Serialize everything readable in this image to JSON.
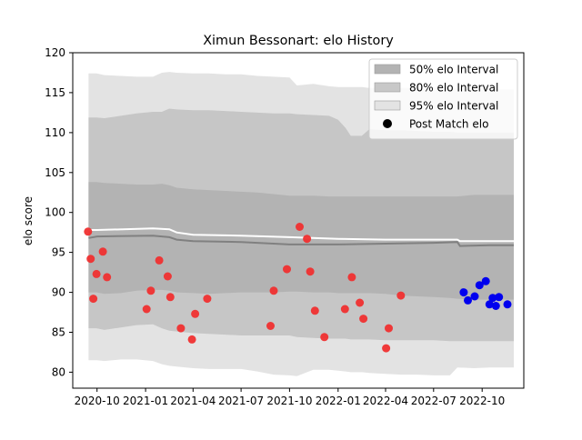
{
  "chart_data": {
    "type": "scatter",
    "title": "Ximun Bessonart: elo History",
    "xlabel": "",
    "ylabel": "elo score",
    "ylim": [
      78,
      120
    ],
    "xlim": [
      "2020-08-16",
      "2022-12-19"
    ],
    "yticks": [
      80,
      85,
      90,
      95,
      100,
      105,
      110,
      115,
      120
    ],
    "xticks": [
      {
        "date": "2020-10-01",
        "label": "2020-10"
      },
      {
        "date": "2021-01-01",
        "label": "2021-01"
      },
      {
        "date": "2021-04-01",
        "label": "2021-04"
      },
      {
        "date": "2021-07-01",
        "label": "2021-07"
      },
      {
        "date": "2021-10-01",
        "label": "2021-10"
      },
      {
        "date": "2022-01-01",
        "label": "2022-01"
      },
      {
        "date": "2022-04-01",
        "label": "2022-04"
      },
      {
        "date": "2022-07-01",
        "label": "2022-07"
      },
      {
        "date": "2022-10-01",
        "label": "2022-10"
      }
    ],
    "grid": false,
    "legend_position": "top-right",
    "legend": [
      {
        "label": "50% elo Interval",
        "kind": "patch",
        "color": "#b3b3b3"
      },
      {
        "label": "80% elo Interval",
        "kind": "patch",
        "color": "#c8c8c8"
      },
      {
        "label": "95% elo Interval",
        "kind": "patch",
        "color": "#e3e3e3"
      },
      {
        "label": "Post Match elo",
        "kind": "marker",
        "color": "#000000"
      }
    ],
    "colors": {
      "band_50": "#b3b3b3",
      "band_80": "#c6c6c6",
      "band_95": "#e3e3e3",
      "mean_line": "#808080",
      "median_line": "#ffffff",
      "past_points": "#f03030",
      "future_points": "#0000ee"
    },
    "bands": {
      "x": [
        "2020-09-15",
        "2020-09-30",
        "2020-10-15",
        "2020-11-15",
        "2020-12-15",
        "2021-01-15",
        "2021-02-01",
        "2021-02-15",
        "2021-03-01",
        "2021-04-01",
        "2021-05-01",
        "2021-06-01",
        "2021-07-01",
        "2021-08-01",
        "2021-09-01",
        "2021-10-01",
        "2021-10-15",
        "2021-11-15",
        "2021-12-15",
        "2022-01-01",
        "2022-01-15",
        "2022-01-25",
        "2022-02-15",
        "2022-03-01",
        "2022-04-01",
        "2022-05-01",
        "2022-06-01",
        "2022-07-01",
        "2022-08-01",
        "2022-08-15",
        "2022-09-15",
        "2022-10-15",
        "2022-11-30"
      ],
      "p95_upper": [
        117.4,
        117.4,
        117.2,
        117.1,
        117.0,
        117.0,
        117.5,
        117.6,
        117.5,
        117.4,
        117.4,
        117.3,
        117.3,
        117.1,
        117.0,
        116.9,
        115.9,
        116.1,
        115.8,
        115.7,
        115.7,
        115.7,
        115.7,
        115.6,
        115.6,
        115.6,
        115.6,
        115.5,
        115.5,
        115.5,
        115.4,
        115.4,
        115.4
      ],
      "p80_upper": [
        111.9,
        111.9,
        111.8,
        112.1,
        112.4,
        112.6,
        112.6,
        113.0,
        112.9,
        112.8,
        112.8,
        112.7,
        112.6,
        112.5,
        112.4,
        112.4,
        112.3,
        112.2,
        112.1,
        111.6,
        110.6,
        109.6,
        109.6,
        110.4,
        110.3,
        110.3,
        110.2,
        110.1,
        110.1,
        110.0,
        110.0,
        110.0,
        110.0
      ],
      "p50_upper": [
        103.8,
        103.8,
        103.7,
        103.6,
        103.5,
        103.5,
        103.6,
        103.4,
        103.1,
        102.9,
        102.8,
        102.7,
        102.6,
        102.5,
        102.3,
        102.1,
        102.1,
        102.1,
        102.0,
        102.0,
        102.0,
        102.0,
        102.0,
        102.0,
        102.0,
        102.0,
        102.0,
        102.0,
        102.0,
        102.0,
        102.2,
        102.2,
        102.2
      ],
      "p50_lower": [
        90.0,
        90.0,
        89.8,
        89.9,
        90.2,
        90.3,
        90.3,
        90.2,
        90.0,
        89.9,
        89.8,
        89.9,
        90.0,
        90.0,
        90.0,
        90.1,
        90.1,
        90.0,
        90.0,
        89.9,
        89.9,
        89.9,
        89.9,
        89.9,
        89.8,
        89.6,
        89.5,
        89.4,
        89.3,
        89.2,
        89.1,
        89.1,
        89.1
      ],
      "p80_lower": [
        85.5,
        85.5,
        85.3,
        85.6,
        85.9,
        86.0,
        85.5,
        85.2,
        85.1,
        84.9,
        84.8,
        84.7,
        84.6,
        84.6,
        84.6,
        84.6,
        84.4,
        84.3,
        84.2,
        84.2,
        84.2,
        84.1,
        84.1,
        84.1,
        84.0,
        84.0,
        84.0,
        84.0,
        83.9,
        83.9,
        83.9,
        83.9,
        83.9
      ],
      "p95_lower": [
        81.5,
        81.5,
        81.4,
        81.6,
        81.6,
        81.4,
        81.0,
        80.8,
        80.7,
        80.5,
        80.4,
        80.4,
        80.4,
        80.1,
        79.7,
        79.6,
        79.5,
        80.3,
        80.3,
        80.2,
        80.1,
        80.0,
        80.0,
        79.9,
        79.8,
        79.7,
        79.7,
        79.6,
        79.6,
        80.6,
        80.5,
        80.6,
        80.6
      ]
    },
    "mean_line": {
      "x": [
        "2020-09-15",
        "2020-10-01",
        "2021-01-15",
        "2021-02-15",
        "2021-03-01",
        "2021-04-01",
        "2021-07-01",
        "2021-10-01",
        "2022-01-01",
        "2022-04-01",
        "2022-07-01",
        "2022-08-15",
        "2022-08-20",
        "2022-10-15",
        "2022-11-30"
      ],
      "y": [
        96.8,
        97.0,
        97.1,
        96.9,
        96.6,
        96.4,
        96.3,
        96.0,
        96.0,
        96.1,
        96.2,
        96.3,
        95.8,
        95.9,
        95.9
      ]
    },
    "median_line": {
      "x": [
        "2020-09-15",
        "2020-10-01",
        "2021-01-15",
        "2021-02-15",
        "2021-03-01",
        "2021-04-01",
        "2021-07-01",
        "2021-10-01",
        "2022-01-01",
        "2022-04-01",
        "2022-07-01",
        "2022-08-15",
        "2022-08-20",
        "2022-10-15",
        "2022-11-30"
      ],
      "y": [
        97.8,
        97.8,
        98.0,
        97.9,
        97.5,
        97.2,
        97.1,
        96.9,
        96.7,
        96.6,
        96.6,
        96.6,
        96.4,
        96.4,
        96.4
      ]
    },
    "series": [
      {
        "name": "Post Match elo",
        "points": [
          {
            "x": "2020-09-14",
            "y": 97.6
          },
          {
            "x": "2020-09-19",
            "y": 94.2
          },
          {
            "x": "2020-09-24",
            "y": 89.2
          },
          {
            "x": "2020-09-30",
            "y": 92.3
          },
          {
            "x": "2020-10-12",
            "y": 95.1
          },
          {
            "x": "2020-10-20",
            "y": 91.9
          },
          {
            "x": "2021-01-03",
            "y": 87.9
          },
          {
            "x": "2021-01-11",
            "y": 90.2
          },
          {
            "x": "2021-01-27",
            "y": 94.0
          },
          {
            "x": "2021-02-12",
            "y": 92.0
          },
          {
            "x": "2021-02-17",
            "y": 89.4
          },
          {
            "x": "2021-03-09",
            "y": 85.5
          },
          {
            "x": "2021-03-30",
            "y": 84.1
          },
          {
            "x": "2021-04-05",
            "y": 87.3
          },
          {
            "x": "2021-04-28",
            "y": 89.2
          },
          {
            "x": "2021-08-26",
            "y": 85.8
          },
          {
            "x": "2021-09-01",
            "y": 90.2
          },
          {
            "x": "2021-09-26",
            "y": 92.9
          },
          {
            "x": "2021-10-20",
            "y": 98.2
          },
          {
            "x": "2021-11-03",
            "y": 96.7
          },
          {
            "x": "2021-11-09",
            "y": 92.6
          },
          {
            "x": "2021-11-18",
            "y": 87.7
          },
          {
            "x": "2021-12-06",
            "y": 84.4
          },
          {
            "x": "2022-01-14",
            "y": 87.9
          },
          {
            "x": "2022-01-27",
            "y": 91.9
          },
          {
            "x": "2022-02-11",
            "y": 88.7
          },
          {
            "x": "2022-02-18",
            "y": 86.7
          },
          {
            "x": "2022-04-02",
            "y": 83.0
          },
          {
            "x": "2022-04-07",
            "y": 85.5
          },
          {
            "x": "2022-04-30",
            "y": 89.6
          }
        ]
      },
      {
        "name": "",
        "points": [
          {
            "x": "2022-08-27",
            "y": 90.0
          },
          {
            "x": "2022-09-04",
            "y": 89.0
          },
          {
            "x": "2022-09-17",
            "y": 89.5
          },
          {
            "x": "2022-09-26",
            "y": 90.9
          },
          {
            "x": "2022-10-08",
            "y": 91.4
          },
          {
            "x": "2022-10-15",
            "y": 88.5
          },
          {
            "x": "2022-10-21",
            "y": 89.3
          },
          {
            "x": "2022-10-27",
            "y": 88.3
          },
          {
            "x": "2022-11-02",
            "y": 89.4
          },
          {
            "x": "2022-11-18",
            "y": 88.5
          }
        ]
      }
    ]
  }
}
